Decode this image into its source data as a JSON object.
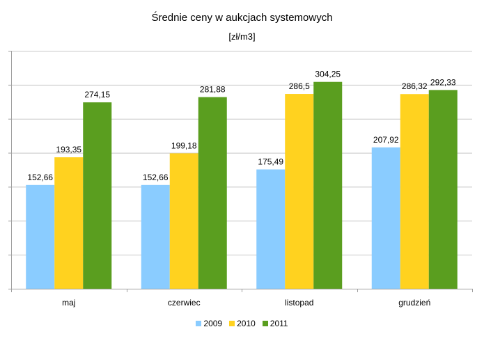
{
  "chart_data": {
    "type": "bar",
    "title": "Średnie ceny w aukcjach systemowych",
    "subtitle": "[zł/m3]",
    "categories": [
      "maj",
      "czerwiec",
      "listopad",
      "grudzień"
    ],
    "series": [
      {
        "name": "2009",
        "color": "#8accff",
        "values": [
          152.66,
          152.66,
          175.49,
          207.92
        ],
        "labels": [
          "152,66",
          "152,66",
          "175,49",
          "207,92"
        ]
      },
      {
        "name": "2010",
        "color": "#ffd21f",
        "values": [
          193.35,
          199.18,
          286.5,
          286.32
        ],
        "labels": [
          "193,35",
          "199,18",
          "286,5",
          "286,32"
        ]
      },
      {
        "name": "2011",
        "color": "#5a9e1f",
        "values": [
          274.15,
          281.88,
          304.25,
          292.33
        ],
        "labels": [
          "274,15",
          "281,88",
          "304,25",
          "292,33"
        ]
      }
    ],
    "ylim": [
      0,
      350
    ],
    "y_tick_step": 50,
    "y_tick_labels_shown": false,
    "grid": true,
    "legend_position": "bottom"
  }
}
